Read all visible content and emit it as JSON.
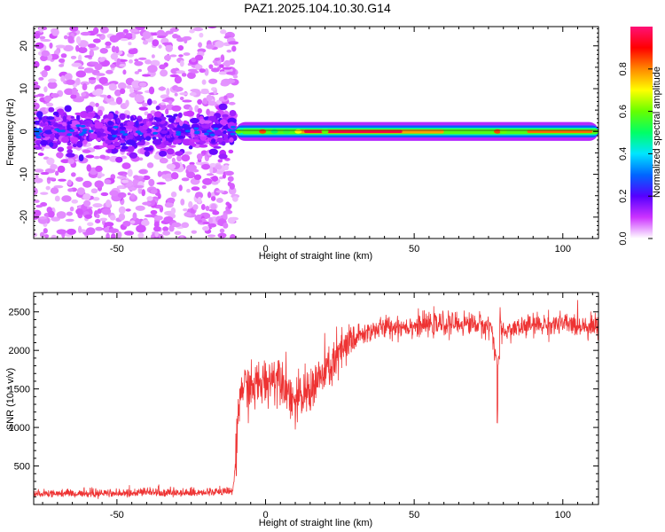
{
  "title": "PAZ1.2025.104.10.30.G14",
  "chart_data": [
    {
      "type": "heatmap",
      "xlabel": "Height of straight line (km)",
      "ylabel": "Frequency (Hz)",
      "xlim": [
        -78,
        112
      ],
      "ylim": [
        -25,
        24.5
      ],
      "xticks": [
        -50,
        0,
        50,
        100
      ],
      "yticks": [
        -20,
        -10,
        0,
        10,
        20
      ],
      "grid": false,
      "colorbar": {
        "label": "Normalized spectral amplitude",
        "range": [
          0,
          1
        ],
        "ticks": [
          "0.0",
          "0.2",
          "0.4",
          "0.6",
          "0.8"
        ],
        "colors": [
          "#ffffff",
          "#cc33ff",
          "#5500ff",
          "#0066ff",
          "#00e5ff",
          "#00ff66",
          "#66ff00",
          "#ffff00",
          "#ff8800",
          "#ff0000",
          "#ff1177"
        ]
      },
      "regions": [
        {
          "x_range": [
            -78,
            -10
          ],
          "description_values": {
            "amplitude_range": [
              0.0,
              0.2
            ],
            "concentration_band_hz": [
              -5,
              5
            ]
          }
        },
        {
          "x_range": [
            -10,
            112
          ],
          "description_values": {
            "amplitude_range": [
              0.3,
              1.0
            ],
            "center_frequency_hz": 0,
            "peak_range_km": [
              13,
              45
            ]
          }
        }
      ]
    },
    {
      "type": "line",
      "xlabel": "Height of straight line (km)",
      "ylabel": "SNR (10 * v/v)",
      "xlim": [
        -78,
        112
      ],
      "ylim": [
        0,
        2750
      ],
      "xticks": [
        -50,
        0,
        50,
        100
      ],
      "yticks": [
        500,
        1000,
        1500,
        2000,
        2500
      ],
      "grid": false,
      "color": "#ee3333",
      "series": [
        {
          "x": [
            -78,
            -60,
            -40,
            -20,
            -11,
            -10,
            -9,
            -8,
            -5,
            0,
            5,
            10,
            15,
            20,
            25,
            30,
            35,
            40,
            50,
            60,
            70,
            76,
            78,
            80,
            90,
            100,
            112
          ],
          "values": [
            140,
            140,
            145,
            150,
            170,
            550,
            1250,
            1550,
            1500,
            1600,
            1700,
            1300,
            1500,
            1700,
            1950,
            2150,
            2250,
            2300,
            2320,
            2340,
            2350,
            2300,
            1800,
            2250,
            2330,
            2340,
            2320
          ]
        }
      ]
    }
  ]
}
